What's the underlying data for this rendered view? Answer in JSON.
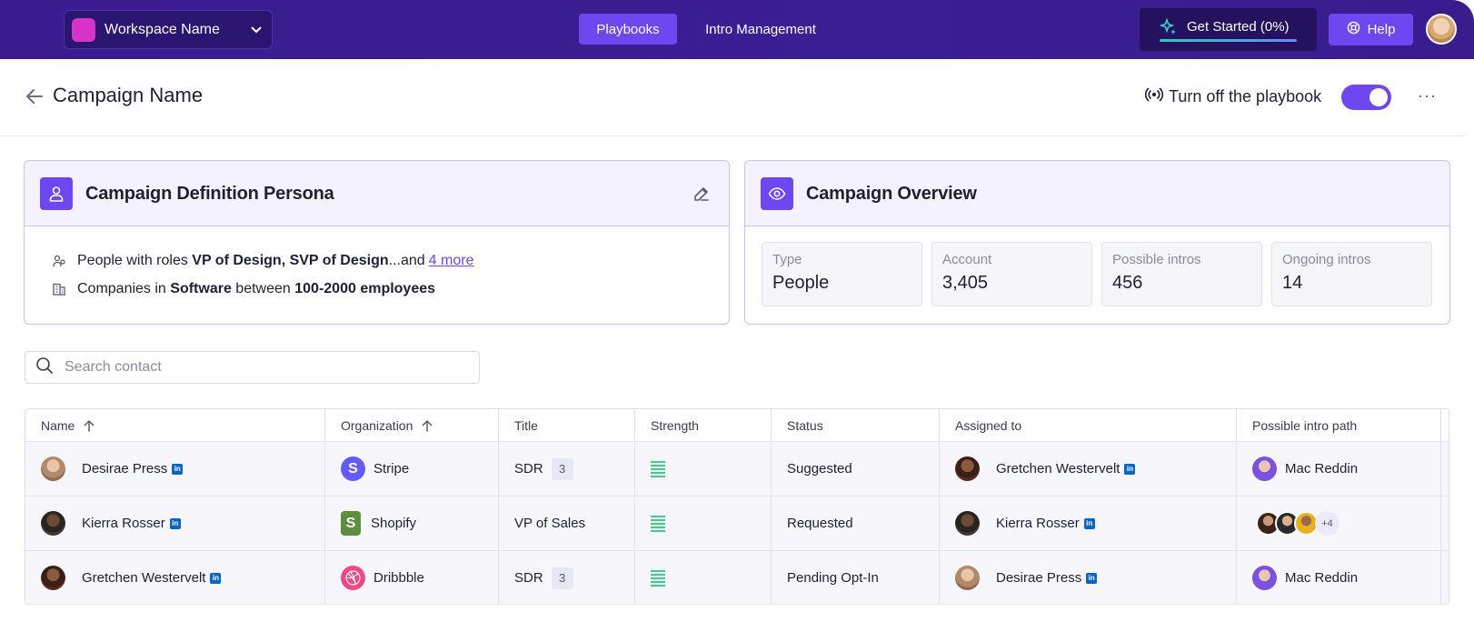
{
  "topbar": {
    "workspace_name": "Workspace Name",
    "nav": [
      {
        "label": "Playbooks",
        "active": true
      },
      {
        "label": "Intro Management",
        "active": false
      }
    ],
    "get_started_label": "Get Started (0%)",
    "help_label": "Help"
  },
  "header": {
    "title": "Campaign Name",
    "toggle_label": "Turn off the playbook",
    "more_label": "···"
  },
  "persona_card": {
    "title": "Campaign Definition Persona",
    "roles_prefix": "People with roles ",
    "roles_bold": "VP of Design, SVP of Design",
    "roles_suffix": "...and",
    "roles_more": "4 more",
    "companies_prefix": "Companies in ",
    "companies_industry": "Software",
    "companies_mid": " between ",
    "companies_size": "100-2000 employees"
  },
  "overview_card": {
    "title": "Campaign Overview",
    "stats": [
      {
        "label": "Type",
        "value": "People"
      },
      {
        "label": "Account",
        "value": "3,405"
      },
      {
        "label": "Possible intros",
        "value": "456"
      },
      {
        "label": "Ongoing intros",
        "value": "14"
      }
    ]
  },
  "search": {
    "placeholder": "Search contact",
    "value": ""
  },
  "table": {
    "columns": [
      "Name",
      "Organization",
      "Title",
      "Strength",
      "Status",
      "Assigned to",
      "Possible intro path"
    ],
    "rows": [
      {
        "name": "Desirae Press",
        "org": "Stripe",
        "title": "SDR",
        "title_badge": "3",
        "status": "Suggested",
        "assigned": "Gretchen Westervelt",
        "intro": "Mac Reddin"
      },
      {
        "name": "Kierra Rosser",
        "org": "Shopify",
        "title": "VP of Sales",
        "title_badge": "",
        "status": "Requested",
        "assigned": "Kierra Rosser",
        "intro_more": "+4"
      },
      {
        "name": "Gretchen Westervelt",
        "org": "Dribbble",
        "title": "SDR",
        "title_badge": "3",
        "status": "Pending Opt-In",
        "assigned": "Desirae Press",
        "intro": "Mac Reddin"
      }
    ]
  },
  "colors": {
    "accent": "#6e47f0",
    "topbar": "#3a1c8f",
    "strength": "#3ecf8e",
    "linkedin": "#0a66c2"
  }
}
